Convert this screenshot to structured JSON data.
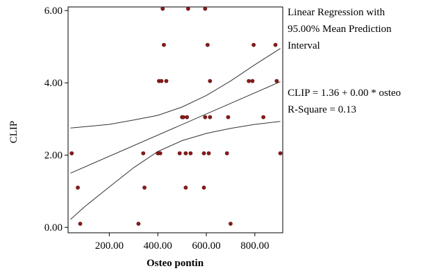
{
  "chart_data": {
    "type": "scatter",
    "title": "",
    "xlabel": "Osteo pontin",
    "ylabel": "CLIP",
    "xlim": [
      30,
      915
    ],
    "ylim": [
      -0.15,
      6.1
    ],
    "x_ticks": [
      200,
      400,
      600,
      800
    ],
    "x_tick_labels": [
      "200.00",
      "400.00",
      "600.00",
      "800.00"
    ],
    "y_ticks": [
      0,
      2,
      4,
      6
    ],
    "y_tick_labels": [
      "0.00",
      "2.00",
      "4.00",
      "6.00"
    ],
    "grid": false,
    "legend_placement": "right",
    "annotations": {
      "legend_lines": [
        "Linear Regression with",
        "95.00% Mean Prediction",
        "Interval"
      ],
      "equation_lines": [
        "CLIP =  1.36 + 0.00 * osteo",
        "R-Square = 0.13"
      ]
    },
    "colors": {
      "points": "#8b1a1a",
      "lines": "#333333",
      "axes": "#000000"
    },
    "points": [
      {
        "x": 45,
        "y": 2.05
      },
      {
        "x": 70,
        "y": 1.1
      },
      {
        "x": 80,
        "y": 0.1
      },
      {
        "x": 320,
        "y": 0.1
      },
      {
        "x": 340,
        "y": 2.05
      },
      {
        "x": 345,
        "y": 1.1
      },
      {
        "x": 400,
        "y": 2.05
      },
      {
        "x": 405,
        "y": 4.05
      },
      {
        "x": 410,
        "y": 2.05
      },
      {
        "x": 415,
        "y": 4.05
      },
      {
        "x": 420,
        "y": 6.05
      },
      {
        "x": 425,
        "y": 5.05
      },
      {
        "x": 435,
        "y": 4.05
      },
      {
        "x": 490,
        "y": 2.05
      },
      {
        "x": 500,
        "y": 3.05
      },
      {
        "x": 505,
        "y": 3.05
      },
      {
        "x": 515,
        "y": 1.1
      },
      {
        "x": 515,
        "y": 2.05
      },
      {
        "x": 520,
        "y": 3.05
      },
      {
        "x": 525,
        "y": 6.05
      },
      {
        "x": 535,
        "y": 2.05
      },
      {
        "x": 590,
        "y": 1.1
      },
      {
        "x": 590,
        "y": 2.05
      },
      {
        "x": 595,
        "y": 3.05
      },
      {
        "x": 595,
        "y": 6.05
      },
      {
        "x": 605,
        "y": 5.05
      },
      {
        "x": 610,
        "y": 2.05
      },
      {
        "x": 615,
        "y": 3.05
      },
      {
        "x": 615,
        "y": 4.05
      },
      {
        "x": 685,
        "y": 2.05
      },
      {
        "x": 690,
        "y": 3.05
      },
      {
        "x": 700,
        "y": 0.1
      },
      {
        "x": 775,
        "y": 4.05
      },
      {
        "x": 790,
        "y": 4.05
      },
      {
        "x": 795,
        "y": 5.05
      },
      {
        "x": 835,
        "y": 3.05
      },
      {
        "x": 885,
        "y": 5.05
      },
      {
        "x": 890,
        "y": 4.05
      },
      {
        "x": 905,
        "y": 2.05
      }
    ],
    "regression_line": [
      {
        "x": 40,
        "y": 1.5
      },
      {
        "x": 905,
        "y": 4.03
      }
    ],
    "upper_band": [
      {
        "x": 40,
        "y": 2.75
      },
      {
        "x": 200,
        "y": 2.85
      },
      {
        "x": 300,
        "y": 2.97
      },
      {
        "x": 400,
        "y": 3.1
      },
      {
        "x": 500,
        "y": 3.33
      },
      {
        "x": 600,
        "y": 3.65
      },
      {
        "x": 700,
        "y": 4.05
      },
      {
        "x": 800,
        "y": 4.5
      },
      {
        "x": 905,
        "y": 4.95
      }
    ],
    "lower_band": [
      {
        "x": 40,
        "y": 0.22
      },
      {
        "x": 100,
        "y": 0.58
      },
      {
        "x": 200,
        "y": 1.12
      },
      {
        "x": 300,
        "y": 1.65
      },
      {
        "x": 400,
        "y": 2.1
      },
      {
        "x": 500,
        "y": 2.4
      },
      {
        "x": 600,
        "y": 2.6
      },
      {
        "x": 700,
        "y": 2.74
      },
      {
        "x": 800,
        "y": 2.85
      },
      {
        "x": 905,
        "y": 2.93
      }
    ]
  }
}
